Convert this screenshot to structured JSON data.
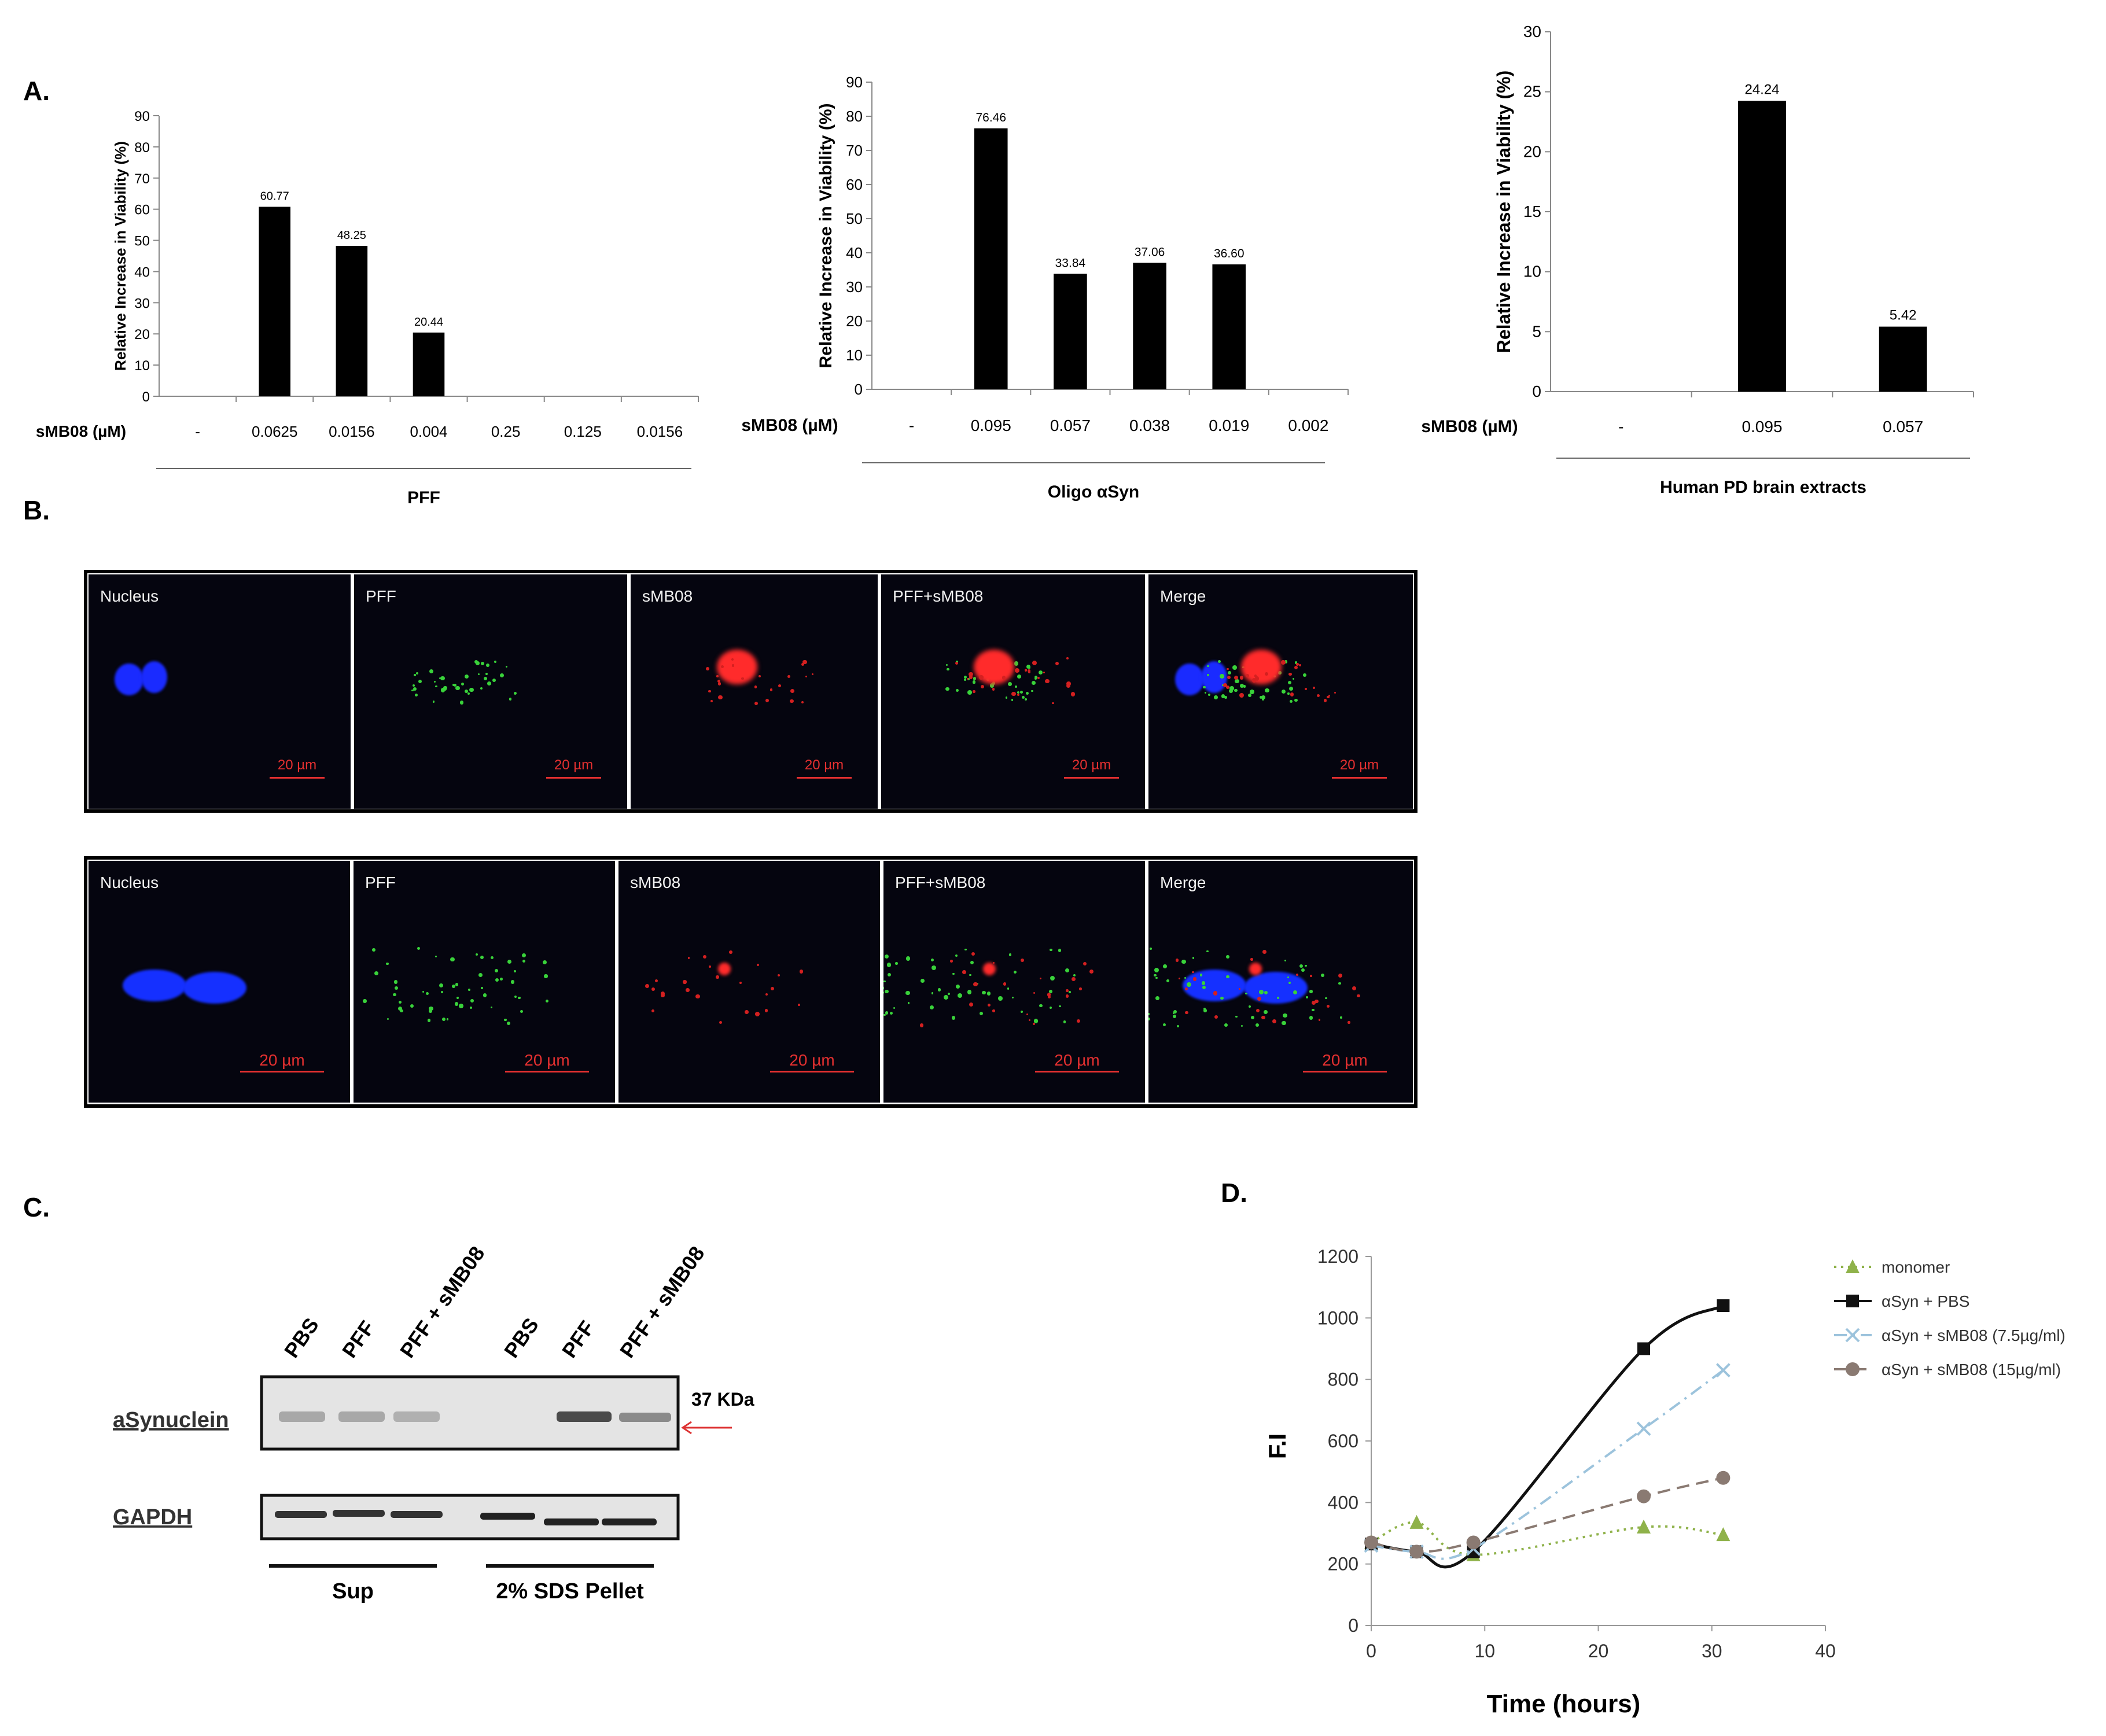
{
  "panels": {
    "A": "A.",
    "B": "B.",
    "C": "C.",
    "D": "D."
  },
  "chart_data": [
    {
      "type": "bar",
      "panel": "A",
      "ylabel": "Relative Increase in Viability (%)",
      "xlabel": "sMB08 (µM)",
      "group": "PFF",
      "categories": [
        "-",
        "0.0625",
        "0.0156",
        "0.004",
        "0.25",
        "0.125",
        "0.0156"
      ],
      "values": [
        null,
        60.77,
        48.25,
        20.44,
        null,
        null,
        null
      ],
      "value_labels": [
        "",
        "60.77",
        "48.25",
        "20.44",
        "",
        "",
        ""
      ],
      "ylim": [
        0,
        90
      ],
      "yticks": [
        0,
        10,
        20,
        30,
        40,
        50,
        60,
        70,
        80,
        90
      ],
      "color": "#000000"
    },
    {
      "type": "bar",
      "panel": "A",
      "ylabel": "Relative Increase in Viability (%)",
      "xlabel": "sMB08 (µM)",
      "group": "Oligo αSyn",
      "categories": [
        "-",
        "0.095",
        "0.057",
        "0.038",
        "0.019",
        "0.002"
      ],
      "values": [
        null,
        76.46,
        33.84,
        37.06,
        36.6,
        null
      ],
      "value_labels": [
        "",
        "76.46",
        "33.84",
        "37.06",
        "36.60",
        ""
      ],
      "ylim": [
        0,
        90
      ],
      "yticks": [
        0,
        10,
        20,
        30,
        40,
        50,
        60,
        70,
        80,
        90
      ],
      "color": "#000000"
    },
    {
      "type": "bar",
      "panel": "A",
      "ylabel": "Relative Increase in Viability (%)",
      "xlabel": "sMB08 (µM)",
      "group": "Human PD brain extracts",
      "categories": [
        "-",
        "0.095",
        "0.057"
      ],
      "values": [
        null,
        24.24,
        5.42
      ],
      "value_labels": [
        "",
        "24.24",
        "5.42"
      ],
      "ylim": [
        0,
        30
      ],
      "yticks": [
        0,
        5,
        10,
        15,
        20,
        25,
        30
      ],
      "color": "#000000"
    },
    {
      "type": "line",
      "panel": "D",
      "ylabel": "F.I",
      "xlabel": "Time (hours)",
      "xlim": [
        0,
        40
      ],
      "ylim": [
        0,
        1200
      ],
      "xticks": [
        0,
        10,
        20,
        30,
        40
      ],
      "yticks": [
        0,
        200,
        400,
        600,
        800,
        1000,
        1200
      ],
      "legend_position": "right",
      "series": [
        {
          "name": "monomer",
          "x": [
            0,
            4,
            9,
            24,
            31
          ],
          "y": [
            270,
            335,
            230,
            320,
            295
          ],
          "color": "#8fb24a",
          "marker": "triangle",
          "dash": "dotted"
        },
        {
          "name": "αSyn + PBS",
          "x": [
            0,
            4,
            9,
            24,
            31
          ],
          "y": [
            265,
            240,
            240,
            900,
            1040
          ],
          "color": "#111111",
          "marker": "square",
          "dash": "solid"
        },
        {
          "name": "αSyn + sMB08 (7.5µg/ml)",
          "x": [
            0,
            4,
            9,
            24,
            31
          ],
          "y": [
            260,
            240,
            250,
            640,
            830
          ],
          "color": "#9cc3dc",
          "marker": "x",
          "dash": "dashdot"
        },
        {
          "name": "αSyn + sMB08 (15µg/ml)",
          "x": [
            0,
            4,
            9,
            24,
            31
          ],
          "y": [
            270,
            240,
            270,
            420,
            480
          ],
          "color": "#8a7a72",
          "marker": "circle",
          "dash": "dashed"
        }
      ]
    }
  ],
  "microscopy": {
    "row1": [
      "Nucleus",
      "PFF",
      "sMB08",
      "PFF+sMB08",
      "Merge"
    ],
    "row2": [
      "Nucleus",
      "PFF",
      "sMB08",
      "PFF+sMB08",
      "Merge"
    ],
    "scale": "20 µm"
  },
  "western": {
    "lanes": [
      "PBS",
      "PFF",
      "PFF + sMB08",
      "PBS",
      "PFF",
      "PFF + sMB08"
    ],
    "rows": [
      "aSynuclein",
      "GAPDH"
    ],
    "marker": "37 KDa",
    "groups": [
      "Sup",
      "2% SDS Pellet"
    ]
  }
}
